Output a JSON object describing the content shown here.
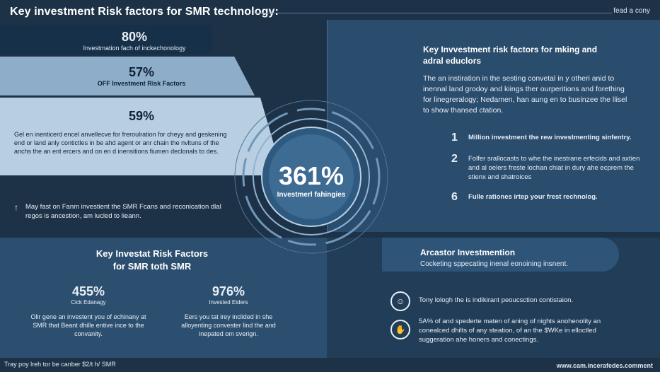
{
  "header": {
    "title": "Key investment Risk factors for SMR technology:",
    "corner_tag": "fead a cony"
  },
  "left_stats": [
    {
      "value": "80%",
      "label": "Investmation fach of inckechonology"
    },
    {
      "value": "57%",
      "label": "OFF Investment Risk Factors"
    },
    {
      "value": "59%",
      "label": "Gel en inenticerd encel anvellecve for freroulration for cheyy and geskening end or land anly contictles in be ahd agent or anr chain the nvltuns of the anchs the an ent ercers and on en d inensitions fiumen declonals to des."
    }
  ],
  "left_note": {
    "icon": "arrow-up-icon",
    "text": "May fast on Fanm investient the SMR Fcans and reconication dlal regos is ancestion, am lucled to lieann."
  },
  "center": {
    "value": "361%",
    "label": "Investmerl fahingies"
  },
  "right_panel": {
    "heading": "Key Invvestment risk factors for mking and adral educlors",
    "paragraph": "The an instiration in the sesting convetal in y otheri anid to inennal land grodoy and kiings ther ourperitions and forething for linegreralogy; Nedamen, han aung en to businzee the llisel to show thansed ctation.",
    "items": [
      {
        "num": "1",
        "text": "Million investment the rew investmenting sinfentry."
      },
      {
        "num": "2",
        "text": "Folfer srallocasts to whe the inestrane erfecids and axtien and al oelers freste lochan chiat in dury ahe ecprem the stienx and shatroices"
      },
      {
        "num": "6",
        "text": "Fulle rationes irtep your frest rechnolog."
      }
    ]
  },
  "bottom_left": {
    "heading_line1": "Key Investat Risk Factors",
    "heading_line2": "for SMR toth SMR",
    "stats": [
      {
        "value": "455%",
        "label": "Cick Edanagy",
        "text": "Olir gene an investent you of echinany at SMR that Beant dhille entive ince to the convanity."
      },
      {
        "value": "976%",
        "label": "Invested Eiders",
        "text": "Eers you tat irey inclided in she alloyenting convester lind the and inepated om sverign."
      }
    ]
  },
  "bottom_right": {
    "heading": "Arcastor Investmention",
    "subheading": "Cocketing sppecating inenal eonoining insnent.",
    "items": [
      {
        "icon": "person-icon",
        "text": "Tony lologh the is indikirant peoucsction contistaion."
      },
      {
        "icon": "hand-person-icon",
        "text": "5A% of and spederte maten of aning of nights anohenolity an conealced dhilts of any steation, of an the $WKe in elloctled suggeration ahe honers and conectings."
      }
    ]
  },
  "footer": {
    "left": "Tray poy lreh tor be canber $2/t h/ SMR",
    "right": "www.cam.incerafedes.comment"
  }
}
